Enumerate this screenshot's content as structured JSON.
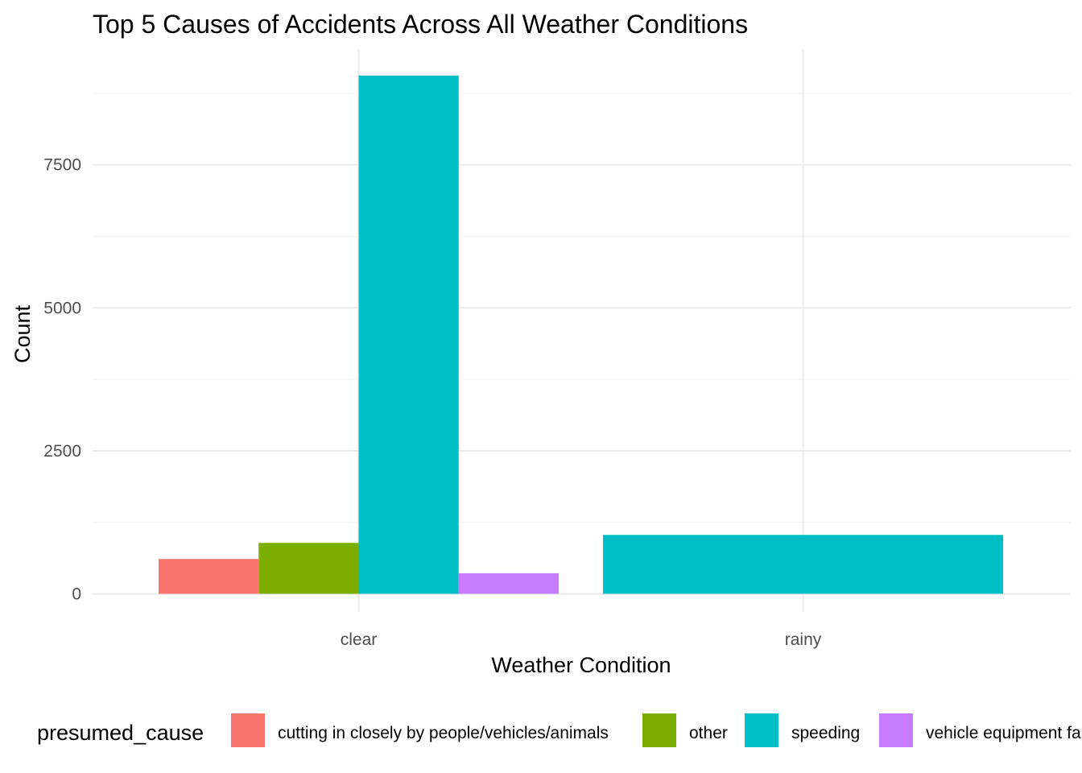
{
  "chart_data": {
    "type": "bar",
    "title": "Top 5 Causes of Accidents Across All Weather Conditions",
    "xlabel": "Weather Condition",
    "ylabel": "Count",
    "categories": [
      "clear",
      "rainy"
    ],
    "ylim": [
      0,
      9300
    ],
    "yticks": [
      0,
      2500,
      5000,
      7500
    ],
    "ytick_labels": [
      "0",
      "2500",
      "5000",
      "7500"
    ],
    "grid": true,
    "legend_position": "bottom",
    "legend_title": "presumed_cause",
    "series": [
      {
        "name": "cutting in closely by people/vehicles/animals",
        "color": "#F8766D",
        "values": [
          610,
          null
        ]
      },
      {
        "name": "other",
        "color": "#7CAE00",
        "values": [
          890,
          null
        ]
      },
      {
        "name": "speeding",
        "color": "#00BFC4",
        "values": [
          9060,
          1030
        ]
      },
      {
        "name": "vehicle equipment failure",
        "display_label": "vehicle equipment fa",
        "color": "#C77CFF",
        "values": [
          360,
          null
        ]
      }
    ]
  }
}
